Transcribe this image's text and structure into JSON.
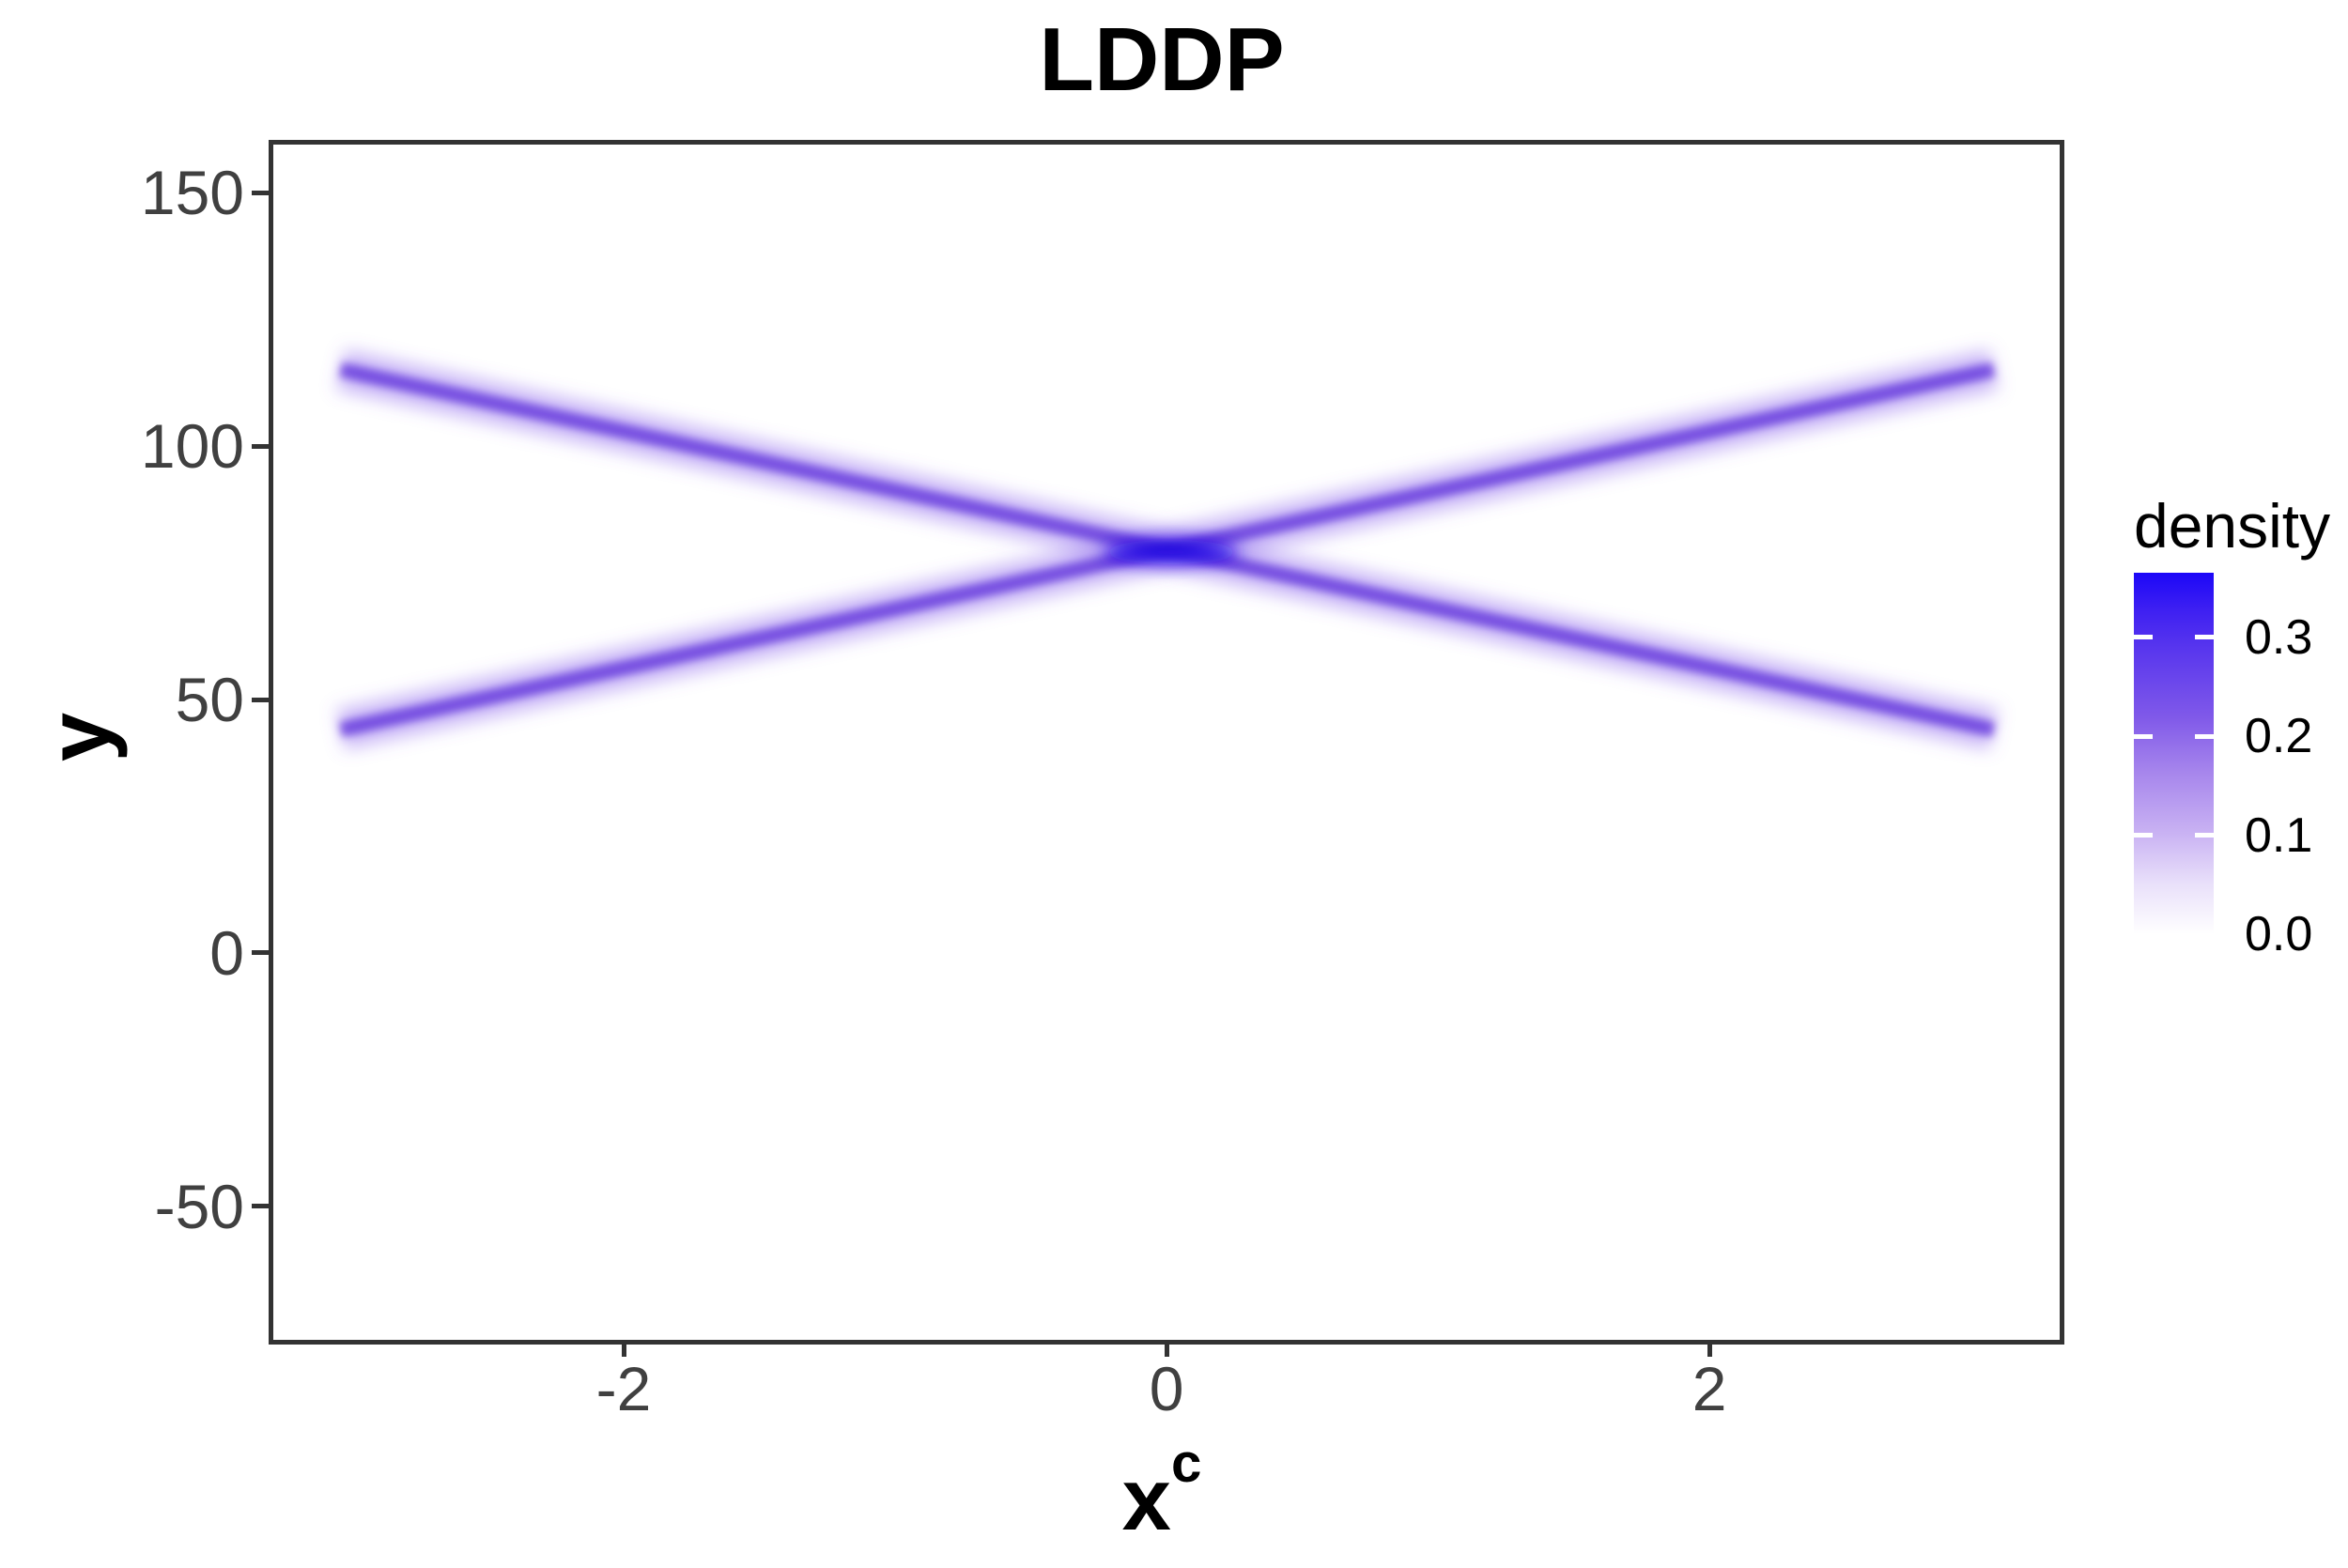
{
  "figure": {
    "background_color": "#FFFFFF",
    "panel_border_color": "#333333",
    "tick_color": "#333333",
    "tick_label_color": "#404040"
  },
  "chart_data": {
    "type": "heatmap",
    "title": "LDDP",
    "xlabel_base": "x",
    "xlabel_sup": "c",
    "ylabel": "y",
    "xlim": [
      -3.308,
      3.273
    ],
    "ylim": [
      -75.4,
      160.4
    ],
    "grid": false,
    "x_ticks": [
      {
        "value": -2,
        "label": "-2"
      },
      {
        "value": 0,
        "label": "0"
      },
      {
        "value": 2,
        "label": "2"
      }
    ],
    "y_ticks": [
      {
        "value": 150,
        "label": "150"
      },
      {
        "value": 100,
        "label": "100"
      },
      {
        "value": 50,
        "label": "50"
      },
      {
        "value": 0,
        "label": "0"
      },
      {
        "value": -50,
        "label": "-50"
      }
    ],
    "series": [
      {
        "name": "density-ridge-descending",
        "x": [
          -3.06,
          0,
          3.03
        ],
        "y": [
          116,
          80,
          45
        ],
        "peak_density": 0.18
      },
      {
        "name": "density-ridge-ascending",
        "x": [
          -3.06,
          0,
          3.03
        ],
        "y": [
          45,
          80,
          116
        ],
        "peak_density": 0.18
      }
    ],
    "crossing": {
      "x": 0,
      "y": 80,
      "density": 0.365
    },
    "ridge_halo_color": "#8d63ee",
    "ridge_core_color": "#7b4ae4",
    "crossing_color": "#2508ea",
    "legend": {
      "title": "density",
      "position": "right",
      "limits": [
        0,
        0.365
      ],
      "ticks": [
        {
          "value": 0.3,
          "label": "0.3"
        },
        {
          "value": 0.2,
          "label": "0.2"
        },
        {
          "value": 0.1,
          "label": "0.1"
        },
        {
          "value": 0.0,
          "label": "0.0"
        }
      ],
      "low_color": "#FFFFFF",
      "high_color": "#1C07F8"
    }
  }
}
